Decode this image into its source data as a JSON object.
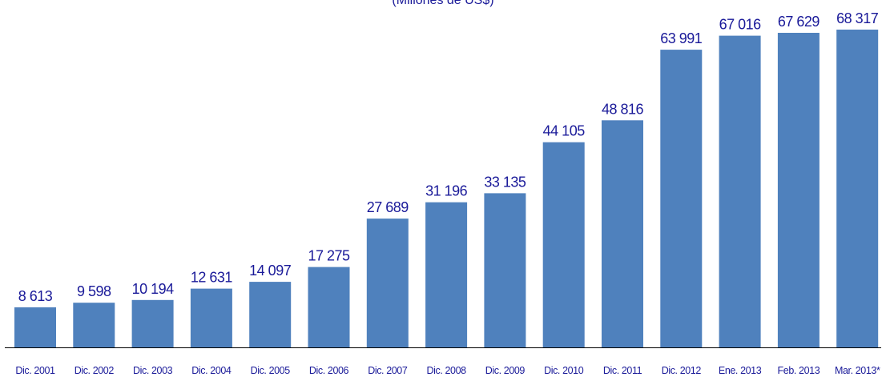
{
  "chart_data": {
    "type": "bar",
    "subtitle": "(Millones de US$)",
    "categories": [
      "Dic. 2001",
      "Dic. 2002",
      "Dic. 2003",
      "Dic. 2004",
      "Dic. 2005",
      "Dic. 2006",
      "Dic. 2007",
      "Dic. 2008",
      "Dic. 2009",
      "Dic. 2010",
      "Dic. 2011",
      "Dic. 2012",
      "Ene. 2013",
      "Feb. 2013",
      "Mar. 2013*"
    ],
    "values": [
      8613,
      9598,
      10194,
      12631,
      14097,
      17275,
      27689,
      31196,
      33135,
      44105,
      48816,
      63991,
      67016,
      67629,
      68317
    ],
    "value_labels": [
      "8 613",
      "9 598",
      "10 194",
      "12 631",
      "14 097",
      "17 275",
      "27 689",
      "31 196",
      "33 135",
      "44 105",
      "48 816",
      "63 991",
      "67 016",
      "67 629",
      "68 317"
    ],
    "ylim": [
      0,
      68317
    ],
    "grid": false,
    "colors": {
      "bar": "#4f81bd",
      "text": "#1a1a99",
      "axis": "#000000"
    }
  }
}
